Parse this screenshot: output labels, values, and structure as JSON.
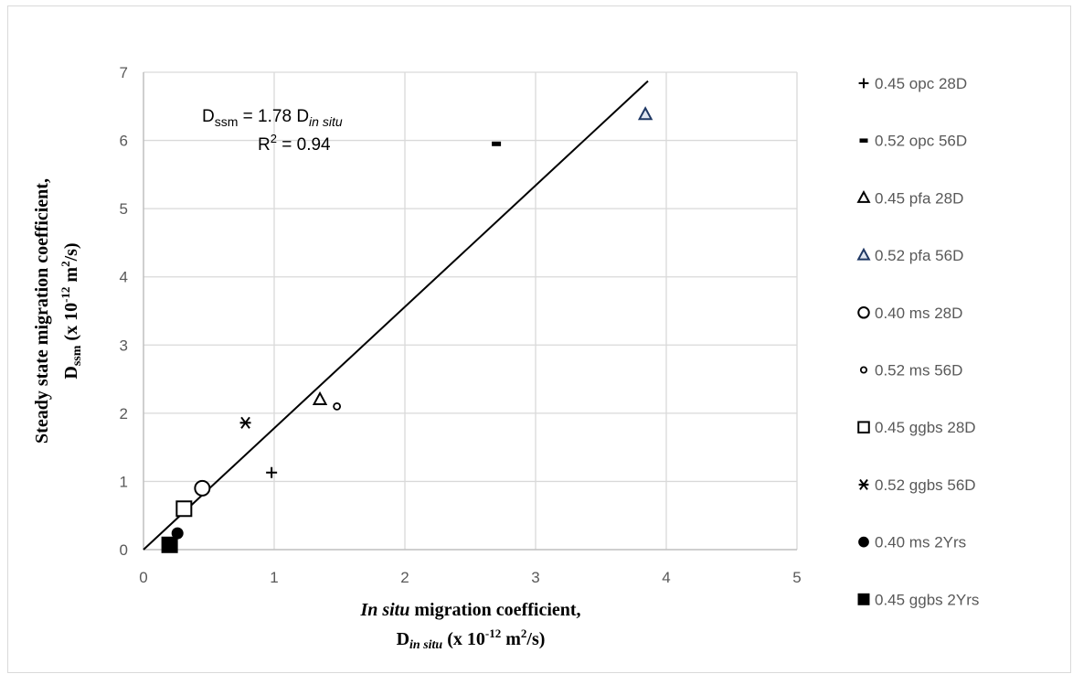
{
  "chart_data": {
    "type": "scatter",
    "title": "",
    "xlabel": {
      "line1_italic": "In situ",
      "line1_rest": " migration  coefficient,",
      "line2_D": "D",
      "line2_sub": "in situ",
      "line2_pre": " (x 10",
      "line2_exp": "-12",
      "line2_unit": " m",
      "line2_unit_exp": "2",
      "line2_end": "/s)"
    },
    "ylabel": {
      "line1": "Steady state migration coefficient,",
      "line2_D": "D",
      "line2_sub": "ssm",
      "line2_pre": " (x 10",
      "line2_exp": "-12",
      "line2_unit": " m",
      "line2_unit_exp": "2",
      "line2_end": "/s)"
    },
    "xlim": [
      0,
      5
    ],
    "ylim": [
      0,
      7
    ],
    "xticks": [
      "0",
      "1",
      "2",
      "3",
      "4",
      "5"
    ],
    "yticks": [
      "0",
      "1",
      "2",
      "3",
      "4",
      "5",
      "6",
      "7"
    ],
    "grid": true,
    "legend_position": "right",
    "series": [
      {
        "name": "0.45 opc 28D",
        "marker": "plus",
        "x": 0.98,
        "y": 1.13
      },
      {
        "name": "0.52 opc 56D",
        "marker": "dash",
        "x": 2.7,
        "y": 5.95
      },
      {
        "name": "0.45 pfa 28D",
        "marker": "triangle-open",
        "x": 1.35,
        "y": 2.2
      },
      {
        "name": "0.52 pfa 56D",
        "marker": "triangle-open-blue",
        "x": 3.84,
        "y": 6.38
      },
      {
        "name": "0.40 ms 28D",
        "marker": "circle-open-large",
        "x": 0.45,
        "y": 0.9
      },
      {
        "name": "0.52 ms 56D",
        "marker": "circle-open-small",
        "x": 1.48,
        "y": 2.1
      },
      {
        "name": "0.45 ggbs 28D",
        "marker": "square-open",
        "x": 0.31,
        "y": 0.6
      },
      {
        "name": "0.52 ggbs 56D",
        "marker": "star",
        "x": 0.78,
        "y": 1.86
      },
      {
        "name": "0.40 ms 2Yrs",
        "marker": "circle-filled",
        "x": 0.26,
        "y": 0.24
      },
      {
        "name": "0.45 ggbs 2Yrs",
        "marker": "square-filled",
        "x": 0.2,
        "y": 0.07
      }
    ],
    "trendline": {
      "slope": 1.78,
      "intercept": 0,
      "x_range": [
        0,
        3.86
      ],
      "equation": {
        "lhs_D": "D",
        "lhs_sub": "ssm",
        "mid": " = 1.78 D",
        "rhs_sub": "in situ"
      },
      "r2": {
        "R": "R",
        "exp": "2",
        "rest": " = 0.94"
      }
    },
    "colors": {
      "grid": "#d9d9d9",
      "axis": "#bfbfbf",
      "marker": "#000000",
      "marker_blue_stroke": "#1f3864"
    }
  }
}
